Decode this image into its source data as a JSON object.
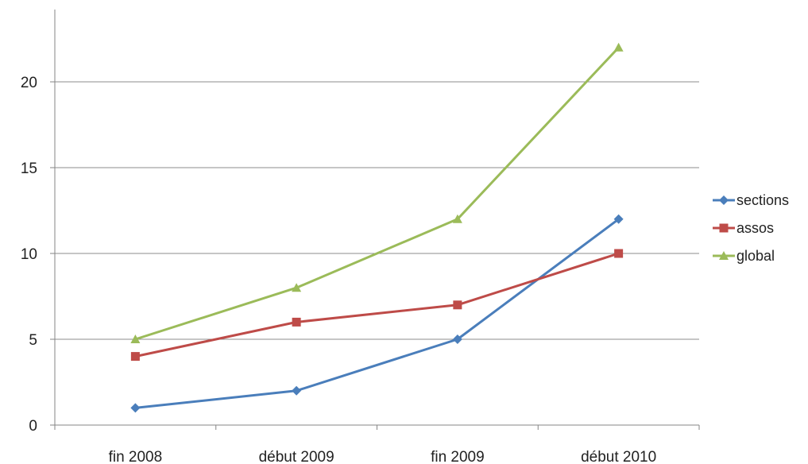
{
  "chart_data": {
    "type": "line",
    "categories": [
      "fin 2008",
      "début 2009",
      "fin 2009",
      "début 2010"
    ],
    "series": [
      {
        "name": "sections",
        "values": [
          1,
          2,
          5,
          12
        ],
        "color": "#4a7ebb",
        "marker": "diamond"
      },
      {
        "name": "assos",
        "values": [
          4,
          6,
          7,
          10
        ],
        "color": "#be4b48",
        "marker": "square"
      },
      {
        "name": "global",
        "values": [
          5,
          8,
          12,
          22
        ],
        "color": "#9bbb59",
        "marker": "triangle"
      }
    ],
    "yticks": [
      0,
      5,
      10,
      15,
      20
    ],
    "ylim": [
      0,
      24
    ],
    "grid": true,
    "legend_position": "right"
  }
}
